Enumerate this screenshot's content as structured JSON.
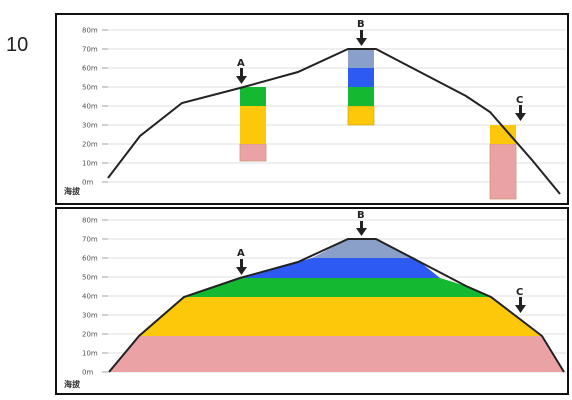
{
  "question_number": "10",
  "colors": {
    "band_0_20": "#eaa2a4",
    "band_20_40": "#fdc80a",
    "band_40_50": "#14b931",
    "band_50_60": "#2d5af3",
    "band_60_70": "#8aa0c9",
    "outline": "#222222"
  },
  "axis": {
    "name": "海拔",
    "ticks": [
      "80m",
      "70m",
      "60m",
      "50m",
      "40m",
      "30m",
      "20m",
      "10m",
      "0m"
    ]
  },
  "panels": [
    {
      "id": "top",
      "points": [
        {
          "label": "A",
          "elevation_m": 50
        },
        {
          "label": "B",
          "elevation_m": 70
        },
        {
          "label": "C",
          "elevation_m": 30
        }
      ]
    },
    {
      "id": "bottom",
      "points": [
        {
          "label": "A"
        },
        {
          "label": "B"
        },
        {
          "label": "C"
        }
      ]
    }
  ]
}
